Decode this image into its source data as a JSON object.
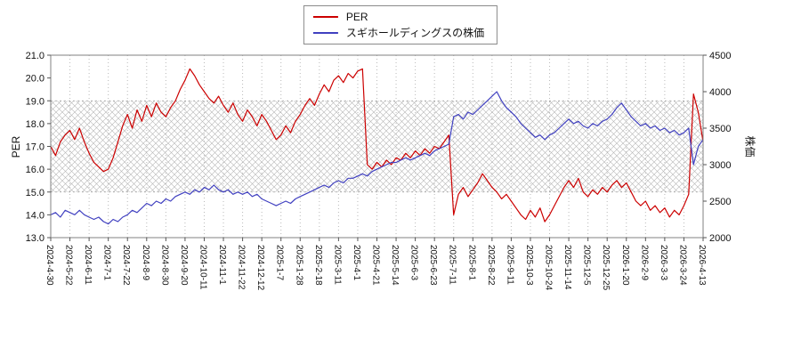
{
  "chart_data": {
    "type": "line",
    "title": "",
    "legend": [
      {
        "label": "PER",
        "color": "#cc0000"
      },
      {
        "label": "スギホールディングスの株価",
        "color": "#4040c0"
      }
    ],
    "left_axis": {
      "label": "PER",
      "min": 13.0,
      "max": 21.0,
      "tick_labels": [
        "21.0",
        "20.0",
        "19.0",
        "18.0",
        "17.0",
        "16.0",
        "15.0",
        "14.0",
        "13.0"
      ]
    },
    "right_axis": {
      "label": "株価",
      "min": 2000,
      "max": 4500,
      "tick_labels": [
        "4500",
        "4000",
        "3500",
        "3000",
        "2500",
        "2000"
      ]
    },
    "x_tick_labels": [
      "2024-4-30",
      "2024-5-22",
      "2024-6-11",
      "2024-7-1",
      "2024-7-22",
      "2024-8-9",
      "2024-8-30",
      "2024-9-20",
      "2024-10-11",
      "2024-11-1",
      "2024-11-22",
      "2024-12-12",
      "2025-1-7",
      "2025-1-28",
      "2025-2-18",
      "2025-3-11",
      "2025-4-1",
      "2025-4-21",
      "2025-5-14",
      "2025-6-3",
      "2025-6-23",
      "2025-7-11",
      "2025-8-1",
      "2025-8-22",
      "2025-9-11",
      "2025-10-3",
      "2025-10-24",
      "2025-11-14",
      "2025-12-5",
      "2025-12-25",
      "2026-1-20",
      "2026-2-9",
      "2026-3-3",
      "2026-3-24",
      "2026-4-13"
    ],
    "shaded_band": {
      "axis": "left",
      "from": 15.0,
      "to": 19.0,
      "style": "crosshatch"
    },
    "grid": "vertical-dotted",
    "series": [
      {
        "name": "PER",
        "axis": "left",
        "color": "#cc0000",
        "values": [
          17.0,
          16.6,
          17.2,
          17.5,
          17.7,
          17.3,
          17.8,
          17.2,
          16.7,
          16.3,
          16.1,
          15.9,
          16.0,
          16.5,
          17.2,
          17.9,
          18.4,
          17.8,
          18.6,
          18.1,
          18.8,
          18.3,
          18.9,
          18.5,
          18.3,
          18.7,
          19.0,
          19.5,
          19.9,
          20.4,
          20.1,
          19.7,
          19.4,
          19.1,
          18.9,
          19.2,
          18.8,
          18.5,
          18.9,
          18.4,
          18.1,
          18.6,
          18.3,
          17.9,
          18.4,
          18.1,
          17.7,
          17.3,
          17.5,
          17.9,
          17.6,
          18.1,
          18.4,
          18.8,
          19.1,
          18.8,
          19.3,
          19.7,
          19.4,
          19.9,
          20.1,
          19.8,
          20.2,
          20.0,
          20.3,
          20.4,
          16.2,
          16.0,
          16.3,
          16.1,
          16.4,
          16.2,
          16.5,
          16.4,
          16.7,
          16.5,
          16.8,
          16.6,
          16.9,
          16.7,
          17.0,
          16.9,
          17.2,
          17.5,
          14.0,
          14.9,
          15.2,
          14.8,
          15.1,
          15.4,
          15.8,
          15.5,
          15.2,
          15.0,
          14.7,
          14.9,
          14.6,
          14.3,
          14.0,
          13.8,
          14.2,
          13.9,
          14.3,
          13.7,
          14.0,
          14.4,
          14.8,
          15.2,
          15.5,
          15.2,
          15.6,
          15.0,
          14.8,
          15.1,
          14.9,
          15.2,
          15.0,
          15.3,
          15.5,
          15.2,
          15.4,
          15.0,
          14.6,
          14.4,
          14.6,
          14.2,
          14.4,
          14.1,
          14.3,
          13.9,
          14.2,
          14.0,
          14.4,
          14.9,
          19.3,
          18.5,
          17.2
        ]
      },
      {
        "name": "スギホールディングスの株価",
        "axis": "right",
        "color": "#4040c0",
        "values": [
          2313,
          2344,
          2281,
          2375,
          2344,
          2313,
          2375,
          2313,
          2281,
          2250,
          2281,
          2219,
          2188,
          2250,
          2219,
          2281,
          2313,
          2375,
          2344,
          2406,
          2469,
          2438,
          2500,
          2469,
          2531,
          2500,
          2563,
          2594,
          2625,
          2594,
          2656,
          2625,
          2688,
          2656,
          2719,
          2656,
          2625,
          2656,
          2594,
          2625,
          2594,
          2625,
          2563,
          2594,
          2531,
          2500,
          2469,
          2438,
          2469,
          2500,
          2469,
          2531,
          2563,
          2594,
          2625,
          2656,
          2688,
          2719,
          2688,
          2750,
          2781,
          2750,
          2813,
          2813,
          2844,
          2875,
          2844,
          2906,
          2938,
          2969,
          3000,
          3031,
          3031,
          3063,
          3094,
          3063,
          3094,
          3125,
          3156,
          3125,
          3188,
          3219,
          3250,
          3281,
          3656,
          3688,
          3625,
          3719,
          3688,
          3750,
          3813,
          3875,
          3938,
          4000,
          3875,
          3781,
          3719,
          3656,
          3563,
          3500,
          3438,
          3375,
          3406,
          3344,
          3406,
          3438,
          3500,
          3563,
          3625,
          3563,
          3594,
          3531,
          3500,
          3563,
          3531,
          3594,
          3625,
          3688,
          3781,
          3844,
          3750,
          3656,
          3594,
          3531,
          3563,
          3500,
          3531,
          3469,
          3500,
          3438,
          3469,
          3406,
          3438,
          3500,
          3000,
          3250,
          3344
        ]
      }
    ]
  }
}
